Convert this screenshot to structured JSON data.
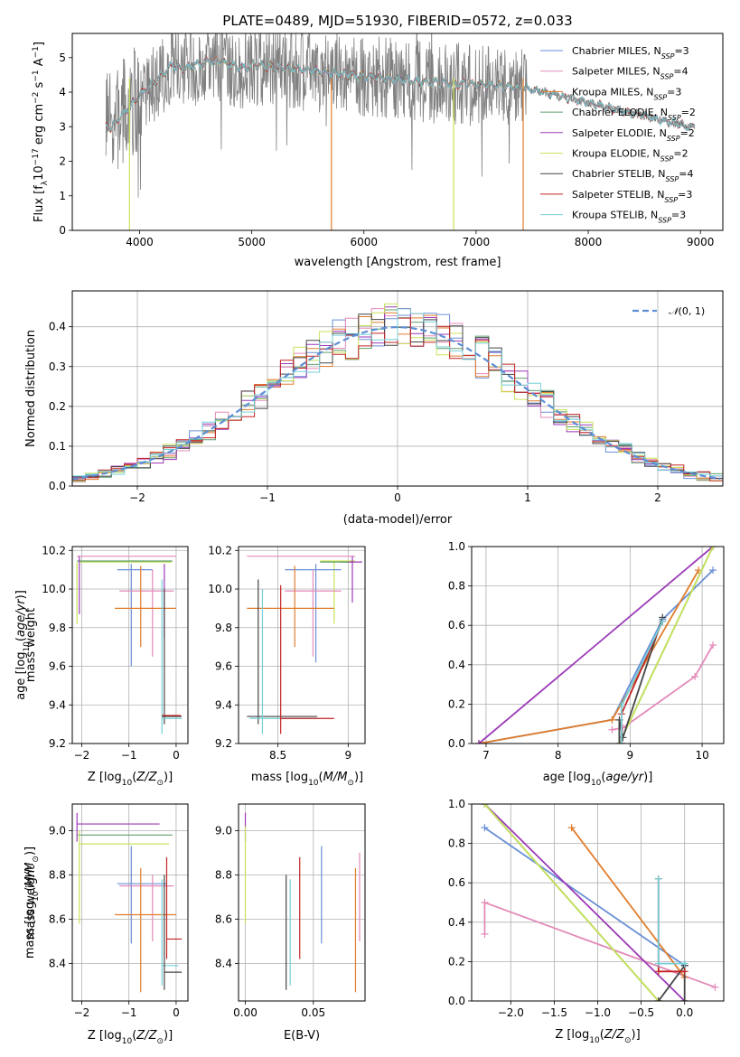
{
  "title": "PLATE=0489, MJD=51930, FIBERID=0572, z=0.033",
  "colors": {
    "Chabrier MILES": "#6a8fd6",
    "Salpeter MILES": "#e38ab9",
    "Kroupa MILES": "#e07d2d",
    "Chabrier ELODIE": "#5f9e6e",
    "Salpeter ELODIE": "#9c39b8",
    "Kroupa ELODIE": "#c7e35a",
    "Chabrier STELIB": "#454545",
    "Salpeter STELIB": "#c42323",
    "Kroupa STELIB": "#76cfd8",
    "data": "#808080",
    "gaussian": "#5b8fd6"
  },
  "legend_spectrum": [
    "Chabrier MILES, N_SSP=3",
    "Salpeter MILES, N_SSP=4",
    "Kroupa MILES, N_SSP=3",
    "Chabrier ELODIE, N_SSP=2",
    "Salpeter ELODIE, N_SSP=2",
    "Kroupa ELODIE, N_SSP=2",
    "Chabrier STELIB, N_SSP=4",
    "Salpeter STELIB, N_SSP=3",
    "Kroupa STELIB, N_SSP=3"
  ],
  "chart_data": [
    {
      "id": "spectrum",
      "type": "line",
      "title": "PLATE=0489, MJD=51930, FIBERID=0572, z=0.033",
      "xlabel": "wavelength [Angstrom, rest frame]",
      "ylabel": "Flux [f_λ 10^-17 erg cm^-2 s^-1 A^-1]",
      "xlim": [
        3400,
        9200
      ],
      "ylim": [
        0,
        5.7
      ],
      "xticks": [
        4000,
        5000,
        6000,
        7000,
        8000,
        9000
      ],
      "yticks": [
        0,
        1,
        2,
        3,
        4,
        5
      ],
      "legend": "upper right",
      "grid": false
    },
    {
      "id": "residuals",
      "type": "line",
      "xlabel": "(data-model)/error",
      "ylabel": "Normed distribution",
      "xlim": [
        -2.5,
        2.5
      ],
      "ylim": [
        0,
        0.49
      ],
      "xticks": [
        -2,
        -1,
        0,
        1,
        2
      ],
      "yticks": [
        0.0,
        0.1,
        0.2,
        0.3,
        0.4
      ],
      "legend_label": "N(0,1)",
      "legend": "upper right",
      "grid": true
    },
    {
      "id": "age_vs_Z",
      "type": "scatter",
      "xlabel": "Z [log10(Z/Z⊙)]",
      "ylabel": "age [log10(age/yr)]",
      "xlim": [
        -2.2,
        0.25
      ],
      "ylim": [
        9.2,
        10.22
      ],
      "xticks": [
        -2,
        -1,
        0
      ],
      "yticks": [
        9.2,
        9.4,
        9.6,
        9.8,
        10.0,
        10.2
      ],
      "grid": true
    },
    {
      "id": "age_vs_mass",
      "type": "scatter",
      "xlabel": "mass [log10(M/M⊙)]",
      "ylabel": "",
      "xlim": [
        8.22,
        9.12
      ],
      "ylim": [
        9.2,
        10.22
      ],
      "xticks": [
        8.5,
        9.0
      ],
      "yticks": [
        9.2,
        9.4,
        9.6,
        9.8,
        10.0,
        10.2
      ],
      "grid": true
    },
    {
      "id": "weight_vs_age",
      "type": "line",
      "xlabel": "age [log10(age/yr)]",
      "ylabel": "mass weight",
      "xlim": [
        6.8,
        10.3
      ],
      "ylim": [
        0,
        1.0
      ],
      "xticks": [
        7,
        8,
        9,
        10
      ],
      "yticks": [
        0.0,
        0.2,
        0.4,
        0.6,
        0.8,
        1.0
      ],
      "grid": true,
      "series": [
        {
          "name": "Chabrier MILES",
          "x": [
            6.9,
            8.75,
            9.45,
            10.15
          ],
          "y": [
            0.0,
            0.12,
            0.63,
            0.88
          ]
        },
        {
          "name": "Salpeter MILES",
          "x": [
            8.75,
            8.9,
            9.9,
            10.15
          ],
          "y": [
            0.07,
            0.08,
            0.34,
            0.5
          ]
        },
        {
          "name": "Kroupa MILES",
          "x": [
            6.9,
            8.75,
            9.95
          ],
          "y": [
            0.0,
            0.12,
            0.88
          ]
        },
        {
          "name": "Chabrier ELODIE",
          "x": [
            8.85,
            10.15
          ],
          "y": [
            0.0,
            1.0
          ]
        },
        {
          "name": "Salpeter ELODIE",
          "x": [
            6.9,
            10.15
          ],
          "y": [
            0.0,
            1.0
          ]
        },
        {
          "name": "Kroupa ELODIE",
          "x": [
            8.85,
            10.15
          ],
          "y": [
            0.0,
            1.0
          ]
        },
        {
          "name": "Chabrier STELIB",
          "x": [
            8.85,
            8.85,
            8.9,
            9.45
          ],
          "y": [
            0.0,
            0.12,
            0.03,
            0.64
          ]
        },
        {
          "name": "Salpeter STELIB",
          "x": [
            8.88,
            8.88,
            9.45
          ],
          "y": [
            0.0,
            0.15,
            0.62
          ]
        },
        {
          "name": "Kroupa STELIB",
          "x": [
            8.88,
            8.88,
            9.45
          ],
          "y": [
            0.0,
            0.19,
            0.62
          ]
        }
      ]
    },
    {
      "id": "mass_vs_Z",
      "type": "scatter",
      "xlabel": "Z [log10(Z/Z⊙)]",
      "ylabel": "mass [log10(M/M⊙)]",
      "xlim": [
        -2.2,
        0.25
      ],
      "ylim": [
        8.23,
        9.12
      ],
      "xticks": [
        -2,
        -1,
        0
      ],
      "yticks": [
        8.4,
        8.6,
        8.8,
        9.0
      ],
      "grid": true
    },
    {
      "id": "mass_vs_ebv",
      "type": "scatter",
      "xlabel": "E(B-V)",
      "ylabel": "",
      "xlim": [
        -0.005,
        0.088
      ],
      "ylim": [
        8.23,
        9.12
      ],
      "xticks": [
        0.0,
        0.05
      ],
      "yticks": [
        8.4,
        8.6,
        8.8,
        9.0
      ],
      "grid": true
    },
    {
      "id": "weight_vs_Z",
      "type": "line",
      "xlabel": "Z [log10(Z/Z⊙)]",
      "ylabel": "mass weight",
      "xlim": [
        -2.45,
        0.45
      ],
      "ylim": [
        0,
        1.0
      ],
      "xticks": [
        -2.0,
        -1.5,
        -1.0,
        -0.5,
        0.0
      ],
      "yticks": [
        0.0,
        0.2,
        0.4,
        0.6,
        0.8,
        1.0
      ],
      "grid": true,
      "series": [
        {
          "name": "Chabrier MILES",
          "x": [
            -2.3,
            0.0
          ],
          "y": [
            0.88,
            0.18
          ]
        },
        {
          "name": "Salpeter MILES",
          "x": [
            -2.3,
            -2.3,
            0.35
          ],
          "y": [
            0.34,
            0.5,
            0.07
          ]
        },
        {
          "name": "Kroupa MILES",
          "x": [
            -1.3,
            0.0
          ],
          "y": [
            0.88,
            0.12
          ]
        },
        {
          "name": "Chabrier ELODIE",
          "x": [
            -2.3,
            -0.3
          ],
          "y": [
            1.0,
            0.0
          ]
        },
        {
          "name": "Salpeter ELODIE",
          "x": [
            -2.3,
            0.0
          ],
          "y": [
            1.0,
            0.0
          ]
        },
        {
          "name": "Kroupa ELODIE",
          "x": [
            -2.3,
            -0.3
          ],
          "y": [
            1.0,
            0.0
          ]
        },
        {
          "name": "Chabrier STELIB",
          "x": [
            -0.3,
            0.0,
            0.0
          ],
          "y": [
            0.0,
            0.18,
            0.0
          ]
        },
        {
          "name": "Salpeter STELIB",
          "x": [
            -0.3,
            -0.3,
            0.0
          ],
          "y": [
            0.62,
            0.15,
            0.15
          ]
        },
        {
          "name": "Kroupa STELIB",
          "x": [
            -0.3,
            -0.3,
            0.0
          ],
          "y": [
            0.62,
            0.19,
            0.19
          ]
        }
      ]
    }
  ]
}
